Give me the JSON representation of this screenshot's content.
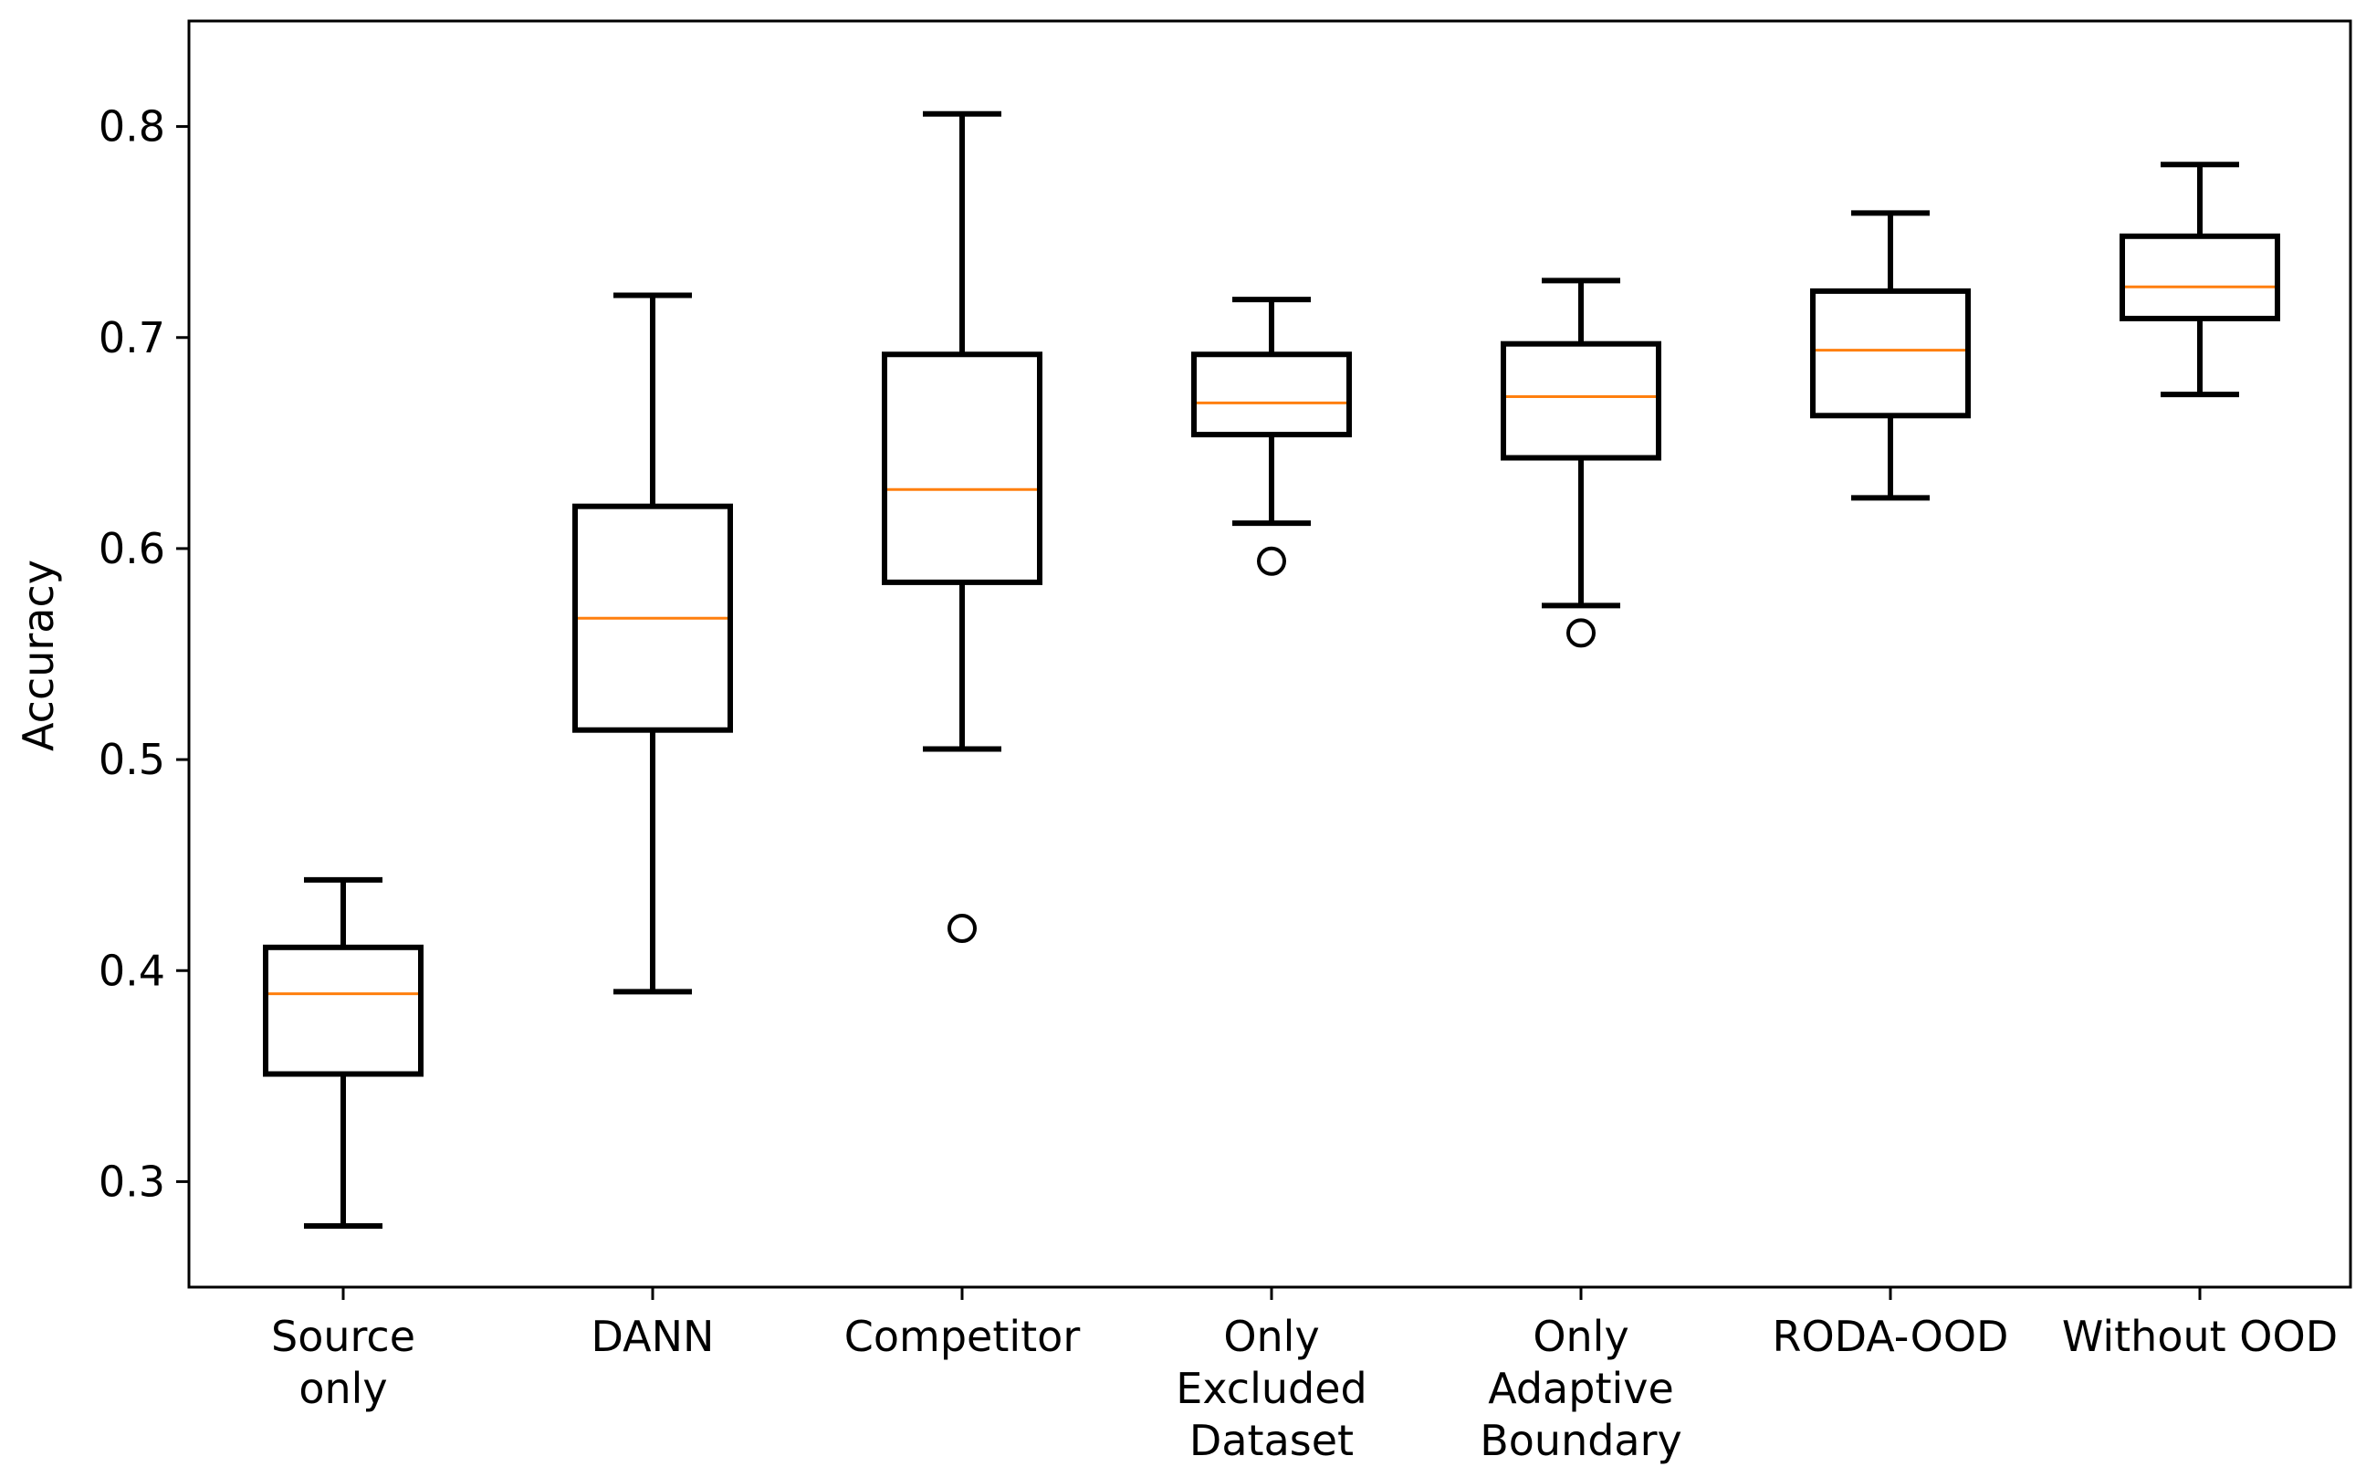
{
  "chart_data": {
    "type": "boxplot",
    "title": "",
    "xlabel": "",
    "ylabel": "Accuracy",
    "ylim": [
      0.25,
      0.85
    ],
    "yticks": [
      0.3,
      0.4,
      0.5,
      0.6,
      0.7,
      0.8
    ],
    "ytick_labels": [
      "0.3",
      "0.4",
      "0.5",
      "0.6",
      "0.7",
      "0.8"
    ],
    "grid": false,
    "colors": {
      "box": "#000000",
      "median": "#ff7f0e",
      "frame": "#000000"
    },
    "categories": [
      {
        "label_lines": [
          "Source",
          "only"
        ],
        "whisker_low": 0.279,
        "q1": 0.351,
        "median": 0.389,
        "q3": 0.411,
        "whisker_high": 0.443,
        "outliers": []
      },
      {
        "label_lines": [
          "DANN"
        ],
        "whisker_low": 0.39,
        "q1": 0.514,
        "median": 0.567,
        "q3": 0.62,
        "whisker_high": 0.72,
        "outliers": []
      },
      {
        "label_lines": [
          "Competitor"
        ],
        "whisker_low": 0.505,
        "q1": 0.584,
        "median": 0.628,
        "q3": 0.692,
        "whisker_high": 0.806,
        "outliers": [
          0.42
        ]
      },
      {
        "label_lines": [
          "Only",
          "Excluded",
          "Dataset"
        ],
        "whisker_low": 0.612,
        "q1": 0.654,
        "median": 0.669,
        "q3": 0.692,
        "whisker_high": 0.718,
        "outliers": [
          0.594
        ]
      },
      {
        "label_lines": [
          "Only",
          "Adaptive",
          "Boundary"
        ],
        "whisker_low": 0.573,
        "q1": 0.643,
        "median": 0.672,
        "q3": 0.697,
        "whisker_high": 0.727,
        "outliers": [
          0.56
        ]
      },
      {
        "label_lines": [
          "RODA-OOD"
        ],
        "whisker_low": 0.624,
        "q1": 0.663,
        "median": 0.694,
        "q3": 0.722,
        "whisker_high": 0.759,
        "outliers": []
      },
      {
        "label_lines": [
          "Without OOD"
        ],
        "whisker_low": 0.673,
        "q1": 0.709,
        "median": 0.724,
        "q3": 0.748,
        "whisker_high": 0.782,
        "outliers": []
      }
    ]
  }
}
